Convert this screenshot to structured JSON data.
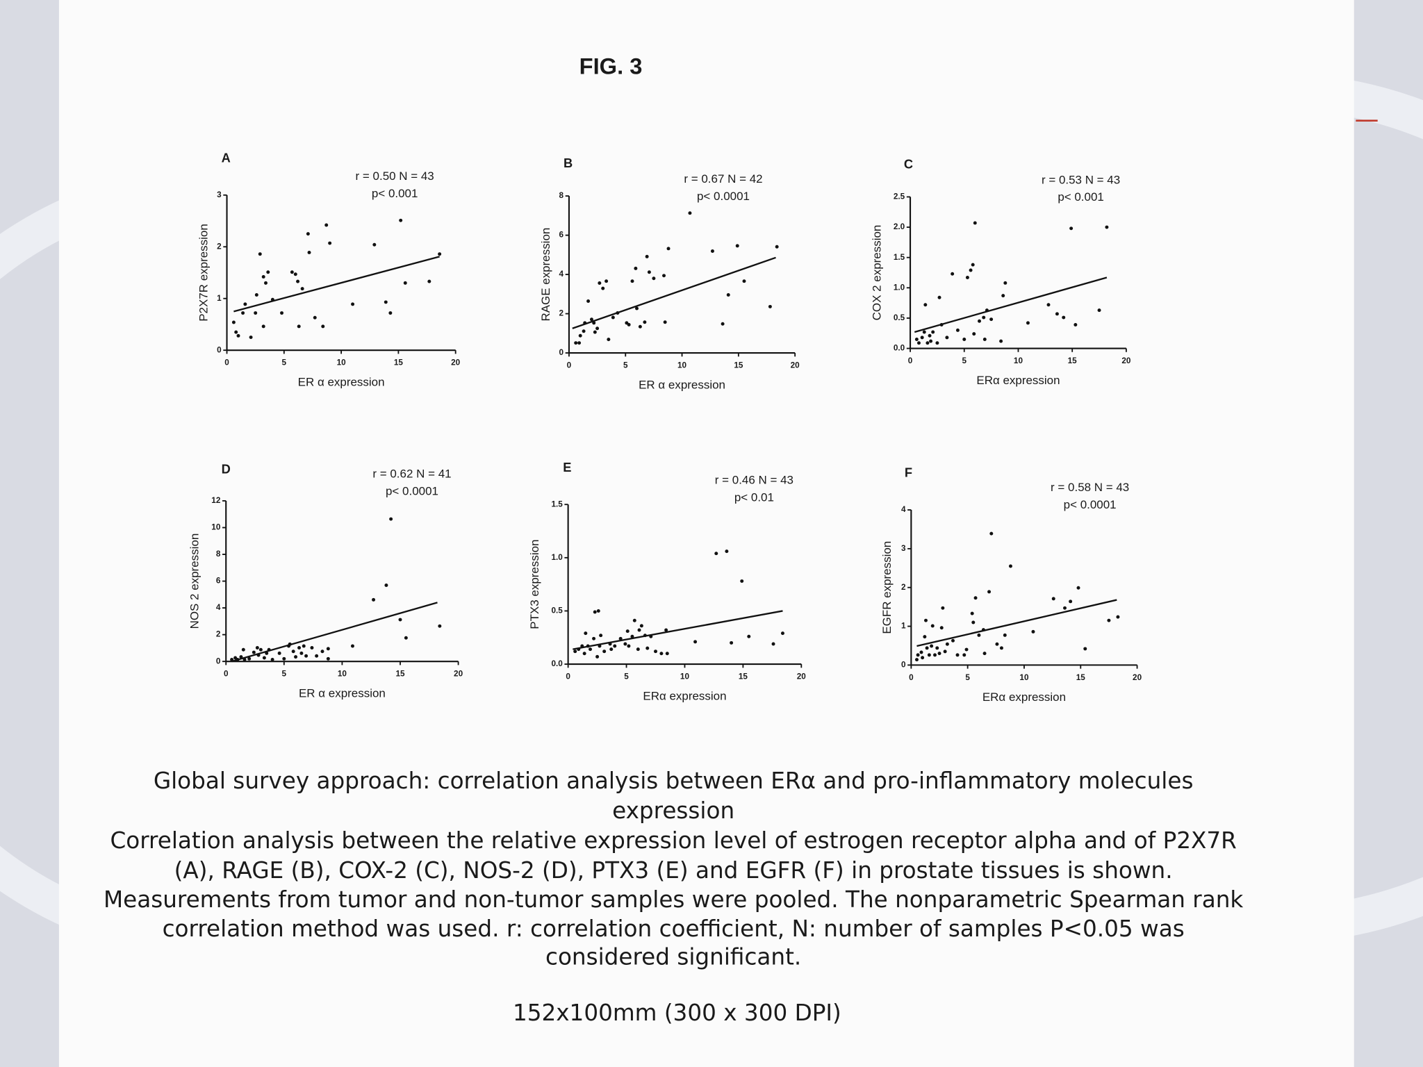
{
  "figure_title": "FIG. 3",
  "chart_data": [
    {
      "type": "scatter",
      "panel": "A",
      "annotations": [
        "r = 0.50 N = 43",
        "p< 0.001"
      ],
      "xlabel": "ER α expression",
      "ylabel": "P2X7R expression",
      "xlim": [
        0,
        20
      ],
      "ylim": [
        0,
        3
      ],
      "xticks": [
        0,
        5,
        10,
        15,
        20
      ],
      "yticks": [
        0,
        1,
        2,
        3
      ],
      "color": "#111111",
      "x": [
        0.6,
        0.8,
        1.0,
        1.4,
        1.6,
        2.1,
        2.5,
        2.6,
        2.9,
        3.2,
        3.2,
        3.4,
        3.6,
        4.0,
        4.8,
        5.7,
        6.0,
        6.2,
        6.3,
        6.6,
        7.1,
        7.2,
        7.7,
        8.4,
        8.7,
        9.0,
        11.0,
        12.9,
        15.2,
        13.9,
        14.3,
        15.6,
        17.7,
        18.6
      ],
      "values": [
        0.54,
        0.35,
        0.28,
        0.72,
        0.89,
        0.25,
        0.72,
        1.07,
        1.86,
        1.42,
        0.46,
        1.3,
        1.51,
        0.98,
        0.72,
        1.51,
        1.47,
        1.33,
        0.46,
        1.19,
        2.25,
        1.89,
        0.63,
        0.46,
        2.42,
        2.07,
        0.89,
        2.04,
        2.51,
        0.93,
        0.72,
        1.3,
        1.33,
        1.86
      ],
      "fit": {
        "x": [
          0.6,
          18.6
        ],
        "values": [
          0.75,
          1.81
        ]
      }
    },
    {
      "type": "scatter",
      "panel": "B",
      "annotations": [
        "r = 0.67 N = 42",
        "p< 0.0001"
      ],
      "xlabel": "ER α expression",
      "ylabel": "RAGE expression",
      "xlim": [
        0,
        20
      ],
      "ylim": [
        0,
        8
      ],
      "xticks": [
        0,
        5,
        10,
        15,
        20
      ],
      "yticks": [
        0,
        2,
        4,
        6,
        8
      ],
      "color": "#111111",
      "x": [
        0.6,
        0.9,
        1.0,
        1.3,
        1.4,
        1.7,
        2.0,
        2.2,
        2.3,
        2.5,
        2.7,
        3.0,
        3.3,
        3.5,
        3.9,
        4.3,
        5.1,
        5.3,
        5.6,
        5.9,
        6.0,
        6.3,
        6.7,
        6.9,
        7.1,
        7.5,
        8.4,
        8.5,
        8.8,
        10.7,
        12.7,
        13.6,
        14.1,
        14.9,
        15.5,
        17.8,
        18.4
      ],
      "values": [
        0.51,
        0.51,
        0.88,
        1.11,
        1.53,
        2.64,
        1.71,
        1.53,
        1.06,
        1.25,
        3.56,
        3.29,
        3.66,
        0.69,
        1.81,
        2.04,
        1.53,
        1.44,
        3.66,
        4.31,
        2.27,
        1.34,
        1.57,
        4.91,
        4.12,
        3.8,
        3.94,
        1.57,
        5.32,
        7.13,
        5.19,
        1.48,
        2.96,
        5.46,
        3.66,
        2.36,
        5.41
      ],
      "fit": {
        "x": [
          0.3,
          18.3
        ],
        "values": [
          1.25,
          4.86
        ]
      }
    },
    {
      "type": "scatter",
      "panel": "C",
      "annotations": [
        "r = 0.53  N = 43",
        "p< 0.001"
      ],
      "xlabel": "ERα expression",
      "ylabel": "COX 2 expression",
      "xlim": [
        0,
        20
      ],
      "ylim": [
        0,
        2.5
      ],
      "xticks": [
        0,
        5,
        10,
        15,
        20
      ],
      "yticks": [
        {
          "value": 0,
          "label": "0.0"
        },
        0.5,
        {
          "value": 1,
          "label": "1.0"
        },
        1.5,
        {
          "value": 2,
          "label": "2.0"
        },
        2.5
      ],
      "color": "#111111",
      "x": [
        0.6,
        0.8,
        1.1,
        1.3,
        1.4,
        1.6,
        1.8,
        1.9,
        2.1,
        2.5,
        2.7,
        2.9,
        3.4,
        3.9,
        4.4,
        5.0,
        5.3,
        5.6,
        5.8,
        6.0,
        5.9,
        6.4,
        6.8,
        6.9,
        7.1,
        7.5,
        8.4,
        8.6,
        8.8,
        10.9,
        12.8,
        13.6,
        14.2,
        14.9,
        15.3,
        17.5,
        18.2
      ],
      "values": [
        0.15,
        0.09,
        0.18,
        0.27,
        0.72,
        0.09,
        0.21,
        0.12,
        0.27,
        0.09,
        0.84,
        0.39,
        0.18,
        1.23,
        0.3,
        0.15,
        1.17,
        1.29,
        1.38,
        2.07,
        0.24,
        0.45,
        0.51,
        0.15,
        0.63,
        0.48,
        0.12,
        0.87,
        1.08,
        0.42,
        0.72,
        0.57,
        0.51,
        1.98,
        0.39,
        0.63,
        2.0
      ],
      "fit": {
        "x": [
          0.4,
          18.2
        ],
        "values": [
          0.27,
          1.17
        ]
      }
    },
    {
      "type": "scatter",
      "panel": "D",
      "annotations": [
        "r = 0.62  N = 41",
        "p< 0.0001"
      ],
      "xlabel": "ER α expression",
      "ylabel": "NOS 2 expression",
      "xlim": [
        0,
        20
      ],
      "ylim": [
        0,
        12
      ],
      "xticks": [
        0,
        5,
        10,
        15,
        20
      ],
      "yticks": [
        0,
        2,
        4,
        6,
        8,
        10,
        12
      ],
      "color": "#111111",
      "x": [
        0.5,
        0.8,
        1.0,
        1.3,
        1.5,
        1.6,
        2.0,
        2.4,
        2.7,
        2.8,
        3.0,
        3.3,
        3.5,
        3.7,
        4.0,
        4.6,
        5.0,
        5.4,
        5.5,
        5.8,
        6.0,
        6.3,
        6.5,
        6.7,
        6.9,
        7.4,
        7.8,
        8.3,
        8.8,
        10.9,
        12.7,
        13.8,
        14.2,
        15.0,
        15.5,
        18.4,
        8.8
      ],
      "values": [
        0.14,
        0.27,
        0.14,
        0.34,
        0.88,
        0.14,
        0.2,
        0.68,
        1.02,
        0.47,
        0.88,
        0.27,
        0.61,
        0.88,
        0.14,
        0.61,
        0.2,
        1.15,
        1.29,
        0.75,
        0.34,
        1.02,
        0.61,
        1.15,
        0.41,
        1.02,
        0.41,
        0.75,
        0.95,
        1.15,
        4.61,
        5.69,
        10.64,
        3.12,
        1.76,
        2.64,
        0.2
      ],
      "fit": {
        "x": [
          0.5,
          18.2
        ],
        "values": [
          0.0,
          4.4
        ]
      }
    },
    {
      "type": "scatter",
      "panel": "E",
      "annotations": [
        "r = 0.46  N = 43",
        "p< 0.01"
      ],
      "xlabel": "ERα expression",
      "ylabel": "PTX3 expression",
      "xlim": [
        0,
        20
      ],
      "ylim": [
        0,
        1.5
      ],
      "xticks": [
        0,
        5,
        10,
        15,
        20
      ],
      "yticks": [
        {
          "value": 0,
          "label": "0.0"
        },
        0.5,
        {
          "value": 1,
          "label": "1.0"
        },
        1.5
      ],
      "color": "#111111",
      "x": [
        0.6,
        0.9,
        1.2,
        1.4,
        1.5,
        1.7,
        1.9,
        2.2,
        2.3,
        2.5,
        2.6,
        2.7,
        2.8,
        3.1,
        3.6,
        3.7,
        4.0,
        4.5,
        4.9,
        5.1,
        5.2,
        5.5,
        5.7,
        6.0,
        6.1,
        6.3,
        6.6,
        6.8,
        7.1,
        7.5,
        8.0,
        8.4,
        8.5,
        10.9,
        12.7,
        13.6,
        14.0,
        14.9,
        15.5,
        17.6,
        18.4
      ],
      "values": [
        0.12,
        0.14,
        0.17,
        0.1,
        0.29,
        0.17,
        0.14,
        0.24,
        0.49,
        0.07,
        0.5,
        0.17,
        0.27,
        0.12,
        0.19,
        0.14,
        0.17,
        0.24,
        0.19,
        0.31,
        0.17,
        0.26,
        0.41,
        0.14,
        0.32,
        0.36,
        0.27,
        0.15,
        0.26,
        0.12,
        0.1,
        0.32,
        0.1,
        0.21,
        1.04,
        1.06,
        0.2,
        0.78,
        0.26,
        0.19,
        0.29
      ],
      "fit": {
        "x": [
          0.4,
          18.4
        ],
        "values": [
          0.14,
          0.5
        ]
      }
    },
    {
      "type": "scatter",
      "panel": "F",
      "annotations": [
        "r = 0.58 N = 43",
        "p< 0.0001"
      ],
      "xlabel": "ERα expression",
      "ylabel": "EGFR  expression",
      "xlim": [
        0,
        20
      ],
      "ylim": [
        0,
        4
      ],
      "xticks": [
        0,
        5,
        10,
        15,
        20
      ],
      "yticks": [
        0,
        1,
        2,
        3,
        4
      ],
      "color": "#111111",
      "x": [
        0.5,
        0.6,
        0.9,
        1.0,
        1.2,
        1.3,
        1.4,
        1.6,
        1.8,
        1.9,
        2.1,
        2.3,
        2.5,
        2.7,
        2.8,
        3.0,
        3.2,
        3.7,
        4.1,
        4.7,
        4.9,
        5.4,
        5.5,
        5.7,
        6.0,
        6.4,
        6.5,
        6.9,
        7.1,
        7.6,
        8.0,
        8.3,
        8.8,
        10.8,
        12.6,
        13.6,
        14.1,
        14.8,
        15.4,
        17.5,
        18.3
      ],
      "values": [
        0.14,
        0.26,
        0.33,
        0.19,
        0.73,
        1.15,
        0.44,
        0.26,
        0.49,
        1.01,
        0.26,
        0.44,
        0.3,
        0.96,
        1.47,
        0.35,
        0.54,
        0.63,
        0.26,
        0.26,
        0.4,
        1.33,
        1.1,
        1.73,
        0.77,
        0.91,
        0.3,
        1.89,
        3.39,
        0.54,
        0.44,
        0.77,
        2.55,
        0.86,
        1.71,
        1.47,
        1.64,
        1.99,
        0.42,
        1.15,
        1.24
      ],
      "fit": {
        "x": [
          0.5,
          18.2
        ],
        "values": [
          0.49,
          1.68
        ]
      }
    }
  ],
  "caption": [
    "Global survey approach: correlation analysis between ERα and pro-inflammatory molecules",
    "expression",
    "Correlation analysis between the relative expression level of estrogen receptor alpha and of P2X7R",
    "(A), RAGE (B), COX-2 (C), NOS-2 (D), PTX3 (E) and EGFR (F) in prostate tissues is shown.",
    "Measurements from tumor and non-tumor samples were pooled. The nonparametric Spearman rank",
    "correlation method was used. r: correlation coefficient, N: number of samples P<0.05 was",
    "considered significant."
  ],
  "size_note": "152x100mm (300 x 300 DPI)"
}
